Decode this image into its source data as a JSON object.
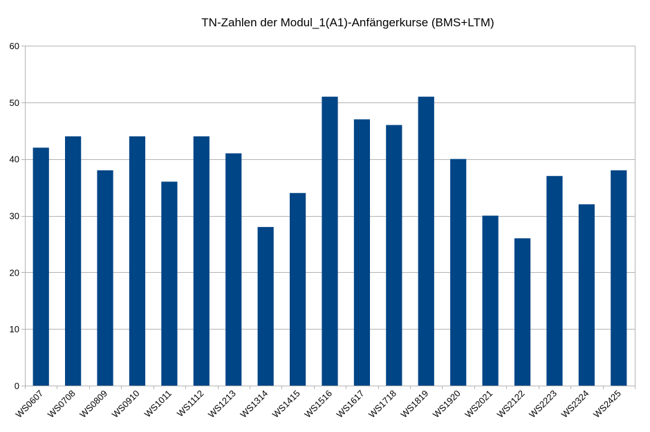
{
  "chart_data": {
    "type": "bar",
    "title": "TN-Zahlen der Modul_1(A1)-Anfängerkurse (BMS+LTM)",
    "xlabel": "",
    "ylabel": "",
    "categories": [
      "WS0607",
      "WS0708",
      "WS0809",
      "WS0910",
      "WS1011",
      "WS1112",
      "WS1213",
      "WS1314",
      "WS1415",
      "WS1516",
      "WS1617",
      "WS1718",
      "WS1819",
      "WS1920",
      "WS2021",
      "WS2122",
      "WS2223",
      "WS2324",
      "WS2425"
    ],
    "values": [
      42,
      44,
      38,
      44,
      36,
      44,
      41,
      28,
      34,
      51,
      47,
      46,
      51,
      40,
      30,
      26,
      37,
      32,
      38
    ],
    "ylim": [
      0,
      60
    ],
    "yticks": [
      0,
      10,
      20,
      30,
      40,
      50,
      60
    ],
    "grid": true,
    "legend": "none",
    "bar_color": "#004586",
    "grid_color": "#b3b3b3"
  }
}
